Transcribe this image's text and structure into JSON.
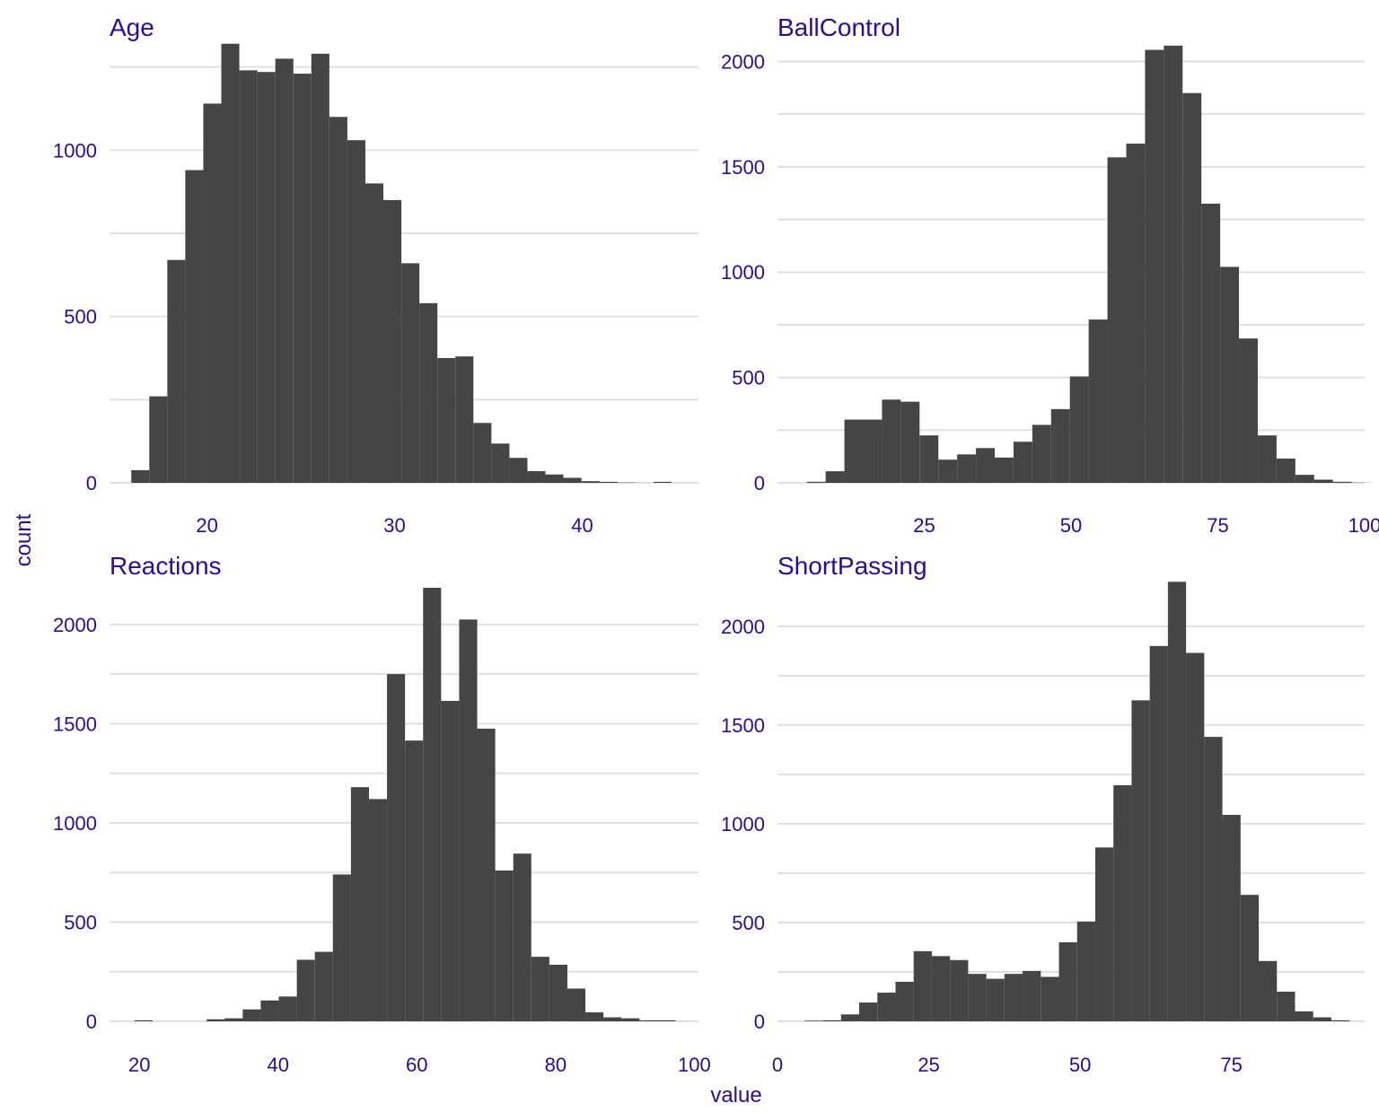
{
  "figure": {
    "ylabel": "count",
    "xlabel": "value",
    "text_color": "#2e0c8f",
    "bar_color": "#454545",
    "grid_color": "#e0e0e0"
  },
  "chart_data": [
    {
      "type": "bar",
      "title": "Age",
      "xlim": [
        14.8,
        46.2
      ],
      "ylim": [
        0,
        1330
      ],
      "x_ticks": [
        "20",
        "30",
        "40"
      ],
      "y_ticks": [
        "0",
        "500",
        "1000"
      ],
      "grid": true,
      "bins": [
        {
          "start": 15.96,
          "end": 16.92,
          "count": 38
        },
        {
          "start": 16.92,
          "end": 17.88,
          "count": 260
        },
        {
          "start": 17.88,
          "end": 18.84,
          "count": 670
        },
        {
          "start": 18.84,
          "end": 19.8,
          "count": 940
        },
        {
          "start": 19.8,
          "end": 20.76,
          "count": 1140
        },
        {
          "start": 20.76,
          "end": 21.72,
          "count": 1320
        },
        {
          "start": 21.72,
          "end": 22.68,
          "count": 1240
        },
        {
          "start": 22.68,
          "end": 23.64,
          "count": 1235
        },
        {
          "start": 23.64,
          "end": 24.6,
          "count": 1275
        },
        {
          "start": 24.6,
          "end": 25.56,
          "count": 1230
        },
        {
          "start": 25.56,
          "end": 26.52,
          "count": 1290
        },
        {
          "start": 26.52,
          "end": 27.48,
          "count": 1100
        },
        {
          "start": 27.48,
          "end": 28.44,
          "count": 1030
        },
        {
          "start": 28.44,
          "end": 29.4,
          "count": 900
        },
        {
          "start": 29.4,
          "end": 30.36,
          "count": 850
        },
        {
          "start": 30.36,
          "end": 31.32,
          "count": 660
        },
        {
          "start": 31.32,
          "end": 32.28,
          "count": 540
        },
        {
          "start": 32.28,
          "end": 33.24,
          "count": 375
        },
        {
          "start": 33.24,
          "end": 34.2,
          "count": 380
        },
        {
          "start": 34.2,
          "end": 35.16,
          "count": 180
        },
        {
          "start": 35.16,
          "end": 36.12,
          "count": 118
        },
        {
          "start": 36.12,
          "end": 37.08,
          "count": 75
        },
        {
          "start": 37.08,
          "end": 38.04,
          "count": 35
        },
        {
          "start": 38.04,
          "end": 39.0,
          "count": 25
        },
        {
          "start": 39.0,
          "end": 39.96,
          "count": 15
        },
        {
          "start": 39.96,
          "end": 40.92,
          "count": 5
        },
        {
          "start": 40.92,
          "end": 41.88,
          "count": 3
        },
        {
          "start": 41.88,
          "end": 42.84,
          "count": 1
        },
        {
          "start": 42.84,
          "end": 43.8,
          "count": 0
        },
        {
          "start": 43.8,
          "end": 44.76,
          "count": 3
        }
      ]
    },
    {
      "type": "bar",
      "title": "BallControl",
      "xlim": [
        0,
        100
      ],
      "ylim": [
        0,
        2100
      ],
      "x_ticks": [
        "25",
        "50",
        "75",
        "100"
      ],
      "y_ticks": [
        "0",
        "500",
        "1000",
        "1500",
        "2000"
      ],
      "grid": true,
      "bins": [
        {
          "start": 5.0,
          "end": 8.2,
          "count": 5
        },
        {
          "start": 8.2,
          "end": 11.4,
          "count": 55
        },
        {
          "start": 11.4,
          "end": 14.6,
          "count": 300
        },
        {
          "start": 14.6,
          "end": 17.8,
          "count": 300
        },
        {
          "start": 17.8,
          "end": 21.0,
          "count": 395
        },
        {
          "start": 21.0,
          "end": 24.2,
          "count": 385
        },
        {
          "start": 24.2,
          "end": 27.4,
          "count": 225
        },
        {
          "start": 27.4,
          "end": 30.6,
          "count": 110
        },
        {
          "start": 30.6,
          "end": 33.8,
          "count": 135
        },
        {
          "start": 33.8,
          "end": 37.0,
          "count": 165
        },
        {
          "start": 37.0,
          "end": 40.2,
          "count": 120
        },
        {
          "start": 40.2,
          "end": 43.4,
          "count": 195
        },
        {
          "start": 43.4,
          "end": 46.6,
          "count": 275
        },
        {
          "start": 46.6,
          "end": 49.8,
          "count": 350
        },
        {
          "start": 49.8,
          "end": 53.0,
          "count": 505
        },
        {
          "start": 53.0,
          "end": 56.2,
          "count": 775
        },
        {
          "start": 56.2,
          "end": 59.4,
          "count": 1545
        },
        {
          "start": 59.4,
          "end": 62.6,
          "count": 1610
        },
        {
          "start": 62.6,
          "end": 65.8,
          "count": 2055
        },
        {
          "start": 65.8,
          "end": 69.0,
          "count": 2075
        },
        {
          "start": 69.0,
          "end": 72.2,
          "count": 1850
        },
        {
          "start": 72.2,
          "end": 75.4,
          "count": 1325
        },
        {
          "start": 75.4,
          "end": 78.6,
          "count": 1025
        },
        {
          "start": 78.6,
          "end": 81.8,
          "count": 685
        },
        {
          "start": 81.8,
          "end": 85.0,
          "count": 225
        },
        {
          "start": 85.0,
          "end": 88.2,
          "count": 115
        },
        {
          "start": 88.2,
          "end": 91.4,
          "count": 38
        },
        {
          "start": 91.4,
          "end": 94.6,
          "count": 15
        },
        {
          "start": 94.6,
          "end": 97.8,
          "count": 5
        },
        {
          "start": 97.8,
          "end": 101.0,
          "count": 1
        }
      ]
    },
    {
      "type": "bar",
      "title": "Reactions",
      "xlim": [
        15.7,
        100.6
      ],
      "ylim": [
        0,
        2230
      ],
      "x_ticks": [
        "20",
        "40",
        "60",
        "80",
        "100"
      ],
      "y_ticks": [
        "0",
        "500",
        "1000",
        "1500",
        "2000"
      ],
      "grid": true,
      "bins": [
        {
          "start": 19.3,
          "end": 21.9,
          "count": 5
        },
        {
          "start": 21.9,
          "end": 24.5,
          "count": 0
        },
        {
          "start": 24.5,
          "end": 27.1,
          "count": 0
        },
        {
          "start": 27.1,
          "end": 29.7,
          "count": 0
        },
        {
          "start": 29.7,
          "end": 32.3,
          "count": 10
        },
        {
          "start": 32.3,
          "end": 34.9,
          "count": 15
        },
        {
          "start": 34.9,
          "end": 37.5,
          "count": 60
        },
        {
          "start": 37.5,
          "end": 40.1,
          "count": 105
        },
        {
          "start": 40.1,
          "end": 42.7,
          "count": 125
        },
        {
          "start": 42.7,
          "end": 45.3,
          "count": 310
        },
        {
          "start": 45.3,
          "end": 47.9,
          "count": 350
        },
        {
          "start": 47.9,
          "end": 50.5,
          "count": 740
        },
        {
          "start": 50.5,
          "end": 53.1,
          "count": 1180
        },
        {
          "start": 53.1,
          "end": 55.7,
          "count": 1120
        },
        {
          "start": 55.7,
          "end": 58.3,
          "count": 1750
        },
        {
          "start": 58.3,
          "end": 60.9,
          "count": 1415
        },
        {
          "start": 60.9,
          "end": 63.5,
          "count": 2185
        },
        {
          "start": 63.5,
          "end": 66.1,
          "count": 1615
        },
        {
          "start": 66.1,
          "end": 68.7,
          "count": 2025
        },
        {
          "start": 68.7,
          "end": 71.3,
          "count": 1475
        },
        {
          "start": 71.3,
          "end": 73.9,
          "count": 760
        },
        {
          "start": 73.9,
          "end": 76.5,
          "count": 845
        },
        {
          "start": 76.5,
          "end": 79.1,
          "count": 325
        },
        {
          "start": 79.1,
          "end": 81.7,
          "count": 285
        },
        {
          "start": 81.7,
          "end": 84.3,
          "count": 165
        },
        {
          "start": 84.3,
          "end": 86.9,
          "count": 45
        },
        {
          "start": 86.9,
          "end": 89.5,
          "count": 20
        },
        {
          "start": 89.5,
          "end": 92.1,
          "count": 15
        },
        {
          "start": 92.1,
          "end": 94.7,
          "count": 5
        },
        {
          "start": 94.7,
          "end": 97.3,
          "count": 5
        }
      ]
    },
    {
      "type": "bar",
      "title": "ShortPassing",
      "xlim": [
        0,
        97
      ],
      "ylim": [
        0,
        2240
      ],
      "x_ticks": [
        "0",
        "25",
        "50",
        "75"
      ],
      "y_ticks": [
        "0",
        "500",
        "1000",
        "1500",
        "2000"
      ],
      "grid": true,
      "bins": [
        {
          "start": 4.5,
          "end": 7.5,
          "count": 3
        },
        {
          "start": 7.5,
          "end": 10.5,
          "count": 5
        },
        {
          "start": 10.5,
          "end": 13.5,
          "count": 35
        },
        {
          "start": 13.5,
          "end": 16.5,
          "count": 95
        },
        {
          "start": 16.5,
          "end": 19.5,
          "count": 145
        },
        {
          "start": 19.5,
          "end": 22.5,
          "count": 200
        },
        {
          "start": 22.5,
          "end": 25.5,
          "count": 355
        },
        {
          "start": 25.5,
          "end": 28.5,
          "count": 330
        },
        {
          "start": 28.5,
          "end": 31.5,
          "count": 310
        },
        {
          "start": 31.5,
          "end": 34.5,
          "count": 240
        },
        {
          "start": 34.5,
          "end": 37.5,
          "count": 215
        },
        {
          "start": 37.5,
          "end": 40.5,
          "count": 240
        },
        {
          "start": 40.5,
          "end": 43.5,
          "count": 255
        },
        {
          "start": 43.5,
          "end": 46.5,
          "count": 225
        },
        {
          "start": 46.5,
          "end": 49.5,
          "count": 400
        },
        {
          "start": 49.5,
          "end": 52.5,
          "count": 505
        },
        {
          "start": 52.5,
          "end": 55.5,
          "count": 880
        },
        {
          "start": 55.5,
          "end": 58.5,
          "count": 1195
        },
        {
          "start": 58.5,
          "end": 61.5,
          "count": 1625
        },
        {
          "start": 61.5,
          "end": 64.5,
          "count": 1900
        },
        {
          "start": 64.5,
          "end": 67.5,
          "count": 2225
        },
        {
          "start": 67.5,
          "end": 70.5,
          "count": 1865
        },
        {
          "start": 70.5,
          "end": 73.5,
          "count": 1440
        },
        {
          "start": 73.5,
          "end": 76.5,
          "count": 1045
        },
        {
          "start": 76.5,
          "end": 79.5,
          "count": 640
        },
        {
          "start": 79.5,
          "end": 82.5,
          "count": 305
        },
        {
          "start": 82.5,
          "end": 85.5,
          "count": 150
        },
        {
          "start": 85.5,
          "end": 88.5,
          "count": 50
        },
        {
          "start": 88.5,
          "end": 91.5,
          "count": 20
        },
        {
          "start": 91.5,
          "end": 94.5,
          "count": 5
        }
      ]
    }
  ]
}
